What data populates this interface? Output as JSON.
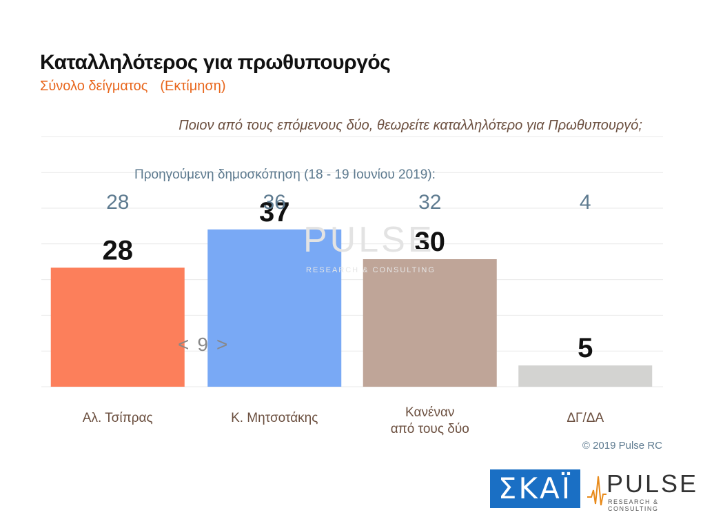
{
  "title": "Καταλληλότερος για πρωθυπουργός",
  "subtitle_left": "Σύνολο δείγματος",
  "subtitle_right": "(Εκτίμηση)",
  "question": "Ποιον από τους επόμενους δύο, θεωρείτε καταλληλότερο για Πρωθυπουργό;",
  "previous_label": "Προηγούμενη δημοσκόπηση (18 - 19 Ιουνίου 2019):",
  "pager": {
    "prev": "<",
    "page": "9",
    "next": ">"
  },
  "copyright": "© 2019 Pulse RC",
  "watermark": {
    "word": "PULSE",
    "tagline": "RESEARCH & CONSULTING"
  },
  "logos": {
    "skai": "ΣΚΑΪ",
    "pulse_word": "PULSE",
    "pulse_tagline": "RESEARCH & CONSULTING"
  },
  "chart_data": {
    "type": "bar",
    "categories": [
      [
        "Αλ. Τσίπρας"
      ],
      [
        "Κ. Μητσοτάκης"
      ],
      [
        "Κανέναν",
        "από τους δύο"
      ],
      [
        "ΔΓ/ΔΑ"
      ]
    ],
    "values": [
      28,
      37,
      30,
      5
    ],
    "previous_values": [
      28,
      36,
      32,
      4
    ],
    "colors": [
      "#fc7f5b",
      "#79a9f5",
      "#bfa598",
      "#d3d3d1"
    ],
    "ylim": [
      0,
      60
    ],
    "grid": true
  }
}
